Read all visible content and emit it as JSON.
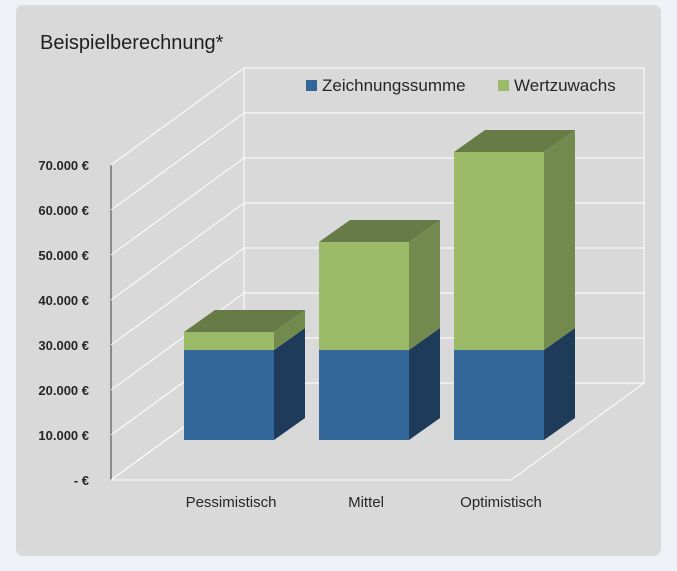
{
  "chart_data": {
    "type": "bar",
    "stacked": true,
    "three_d": true,
    "title": "Beispielberechnung*",
    "categories": [
      "Pessimistisch",
      "Mittel",
      "Optimistisch"
    ],
    "series": [
      {
        "name": "Zeichnungssumme",
        "values": [
          20000,
          20000,
          20000
        ],
        "color": "#336699"
      },
      {
        "name": "Wertzuwachs",
        "values": [
          4000,
          24000,
          44000
        ],
        "color": "#9bbb69"
      }
    ],
    "ylim": [
      0,
      70000
    ],
    "yticks": [
      0,
      10000,
      20000,
      30000,
      40000,
      50000,
      60000,
      70000
    ],
    "ytick_labels": [
      "-  €",
      "10.000 €",
      "20.000 €",
      "30.000 €",
      "40.000 €",
      "50.000 €",
      "60.000 €",
      "70.000 €"
    ],
    "grid": true,
    "legend_position": "top-right",
    "xlabel": "",
    "ylabel": ""
  },
  "colors": {
    "background": "#d9d9d9",
    "page": "#eef1f5",
    "gridline": "#ffffff"
  }
}
